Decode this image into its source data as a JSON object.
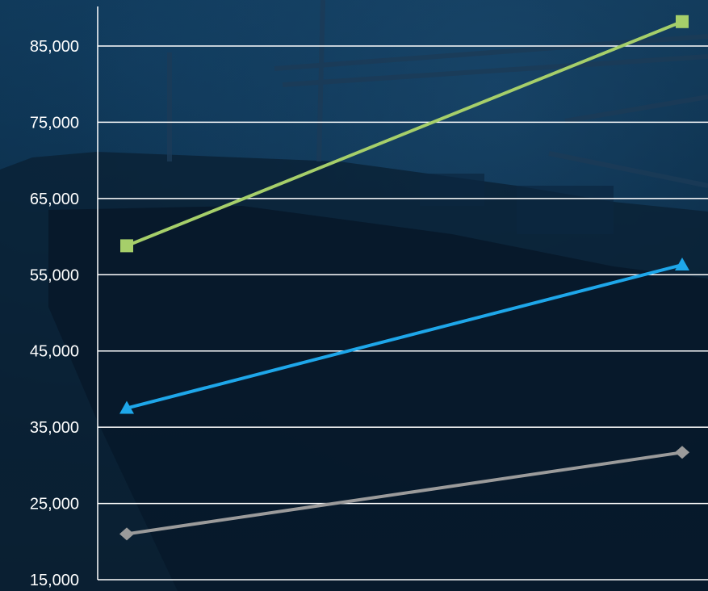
{
  "chart_data": {
    "type": "line",
    "title": "",
    "xlabel": "",
    "ylabel": "",
    "categories": [
      "",
      ""
    ],
    "ylim": [
      15000,
      90000
    ],
    "yticks": [
      15000,
      25000,
      35000,
      45000,
      55000,
      65000,
      75000,
      85000
    ],
    "ytick_labels": [
      "15,000",
      "25,000",
      "35,000",
      "45,000",
      "55,000",
      "65,000",
      "75,000",
      "85,000"
    ],
    "grid": true,
    "legend": "none",
    "series": [
      {
        "values": [
          58800,
          88200
        ],
        "color": "#a6cf6a",
        "marker": "square"
      },
      {
        "values": [
          37500,
          56300
        ],
        "color": "#1ea7ea",
        "marker": "triangle"
      },
      {
        "values": [
          21000,
          31700
        ],
        "color": "#9b9b9b",
        "marker": "diamond"
      }
    ]
  }
}
